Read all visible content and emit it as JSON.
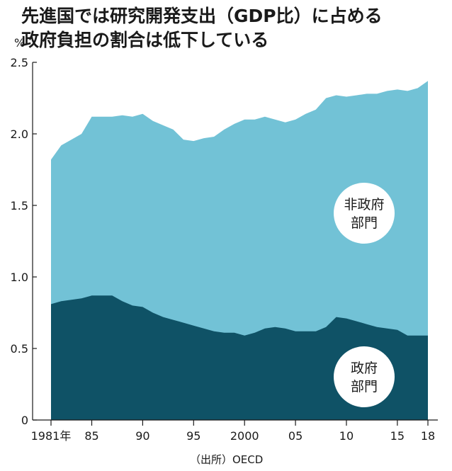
{
  "title": {
    "line1": "先進国では研究開発支出（GDP比）に占める",
    "line2": "政府負担の割合は低下している"
  },
  "source": "（出所）OECD",
  "colors": {
    "total_area": "#72c2d6",
    "government_area": "#0f5266",
    "axis": "#1a1a1a",
    "bubble": "#ffffff"
  },
  "chart_data": {
    "type": "area",
    "stacked": true,
    "y_unit": "%",
    "ylim": [
      0,
      2.5
    ],
    "y_ticks": [
      "0",
      "0.5",
      "1.0",
      "1.5",
      "2.0",
      "2.5"
    ],
    "y_tick_values": [
      0,
      0.5,
      1.0,
      1.5,
      2.0,
      2.5
    ],
    "x_ticks": [
      "1981年",
      "85",
      "90",
      "95",
      "2000",
      "05",
      "10",
      "15",
      "18"
    ],
    "x_tick_values": [
      1981,
      1985,
      1990,
      1995,
      2000,
      2005,
      2010,
      2015,
      2018
    ],
    "x": [
      1981,
      1982,
      1983,
      1984,
      1985,
      1986,
      1987,
      1988,
      1989,
      1990,
      1991,
      1992,
      1993,
      1994,
      1995,
      1996,
      1997,
      1998,
      1999,
      2000,
      2001,
      2002,
      2003,
      2004,
      2005,
      2006,
      2007,
      2008,
      2009,
      2010,
      2011,
      2012,
      2013,
      2014,
      2015,
      2016,
      2017,
      2018
    ],
    "series": [
      {
        "name": "政府部門",
        "label_lines": [
          "政府",
          "部門"
        ],
        "values": [
          0.81,
          0.83,
          0.84,
          0.85,
          0.87,
          0.87,
          0.87,
          0.83,
          0.8,
          0.79,
          0.75,
          0.72,
          0.7,
          0.68,
          0.66,
          0.64,
          0.62,
          0.61,
          0.61,
          0.59,
          0.61,
          0.64,
          0.65,
          0.64,
          0.62,
          0.62,
          0.62,
          0.65,
          0.72,
          0.71,
          0.69,
          0.67,
          0.65,
          0.64,
          0.63,
          0.59,
          0.59,
          0.59
        ]
      },
      {
        "name": "非政府部門",
        "label_lines": [
          "非政府",
          "部門"
        ],
        "values": [
          1.01,
          1.09,
          1.12,
          1.15,
          1.25,
          1.25,
          1.25,
          1.3,
          1.32,
          1.35,
          1.34,
          1.34,
          1.33,
          1.28,
          1.29,
          1.33,
          1.36,
          1.42,
          1.46,
          1.51,
          1.49,
          1.48,
          1.45,
          1.44,
          1.48,
          1.52,
          1.55,
          1.6,
          1.55,
          1.55,
          1.58,
          1.61,
          1.63,
          1.66,
          1.68,
          1.71,
          1.73,
          1.78
        ]
      }
    ]
  }
}
